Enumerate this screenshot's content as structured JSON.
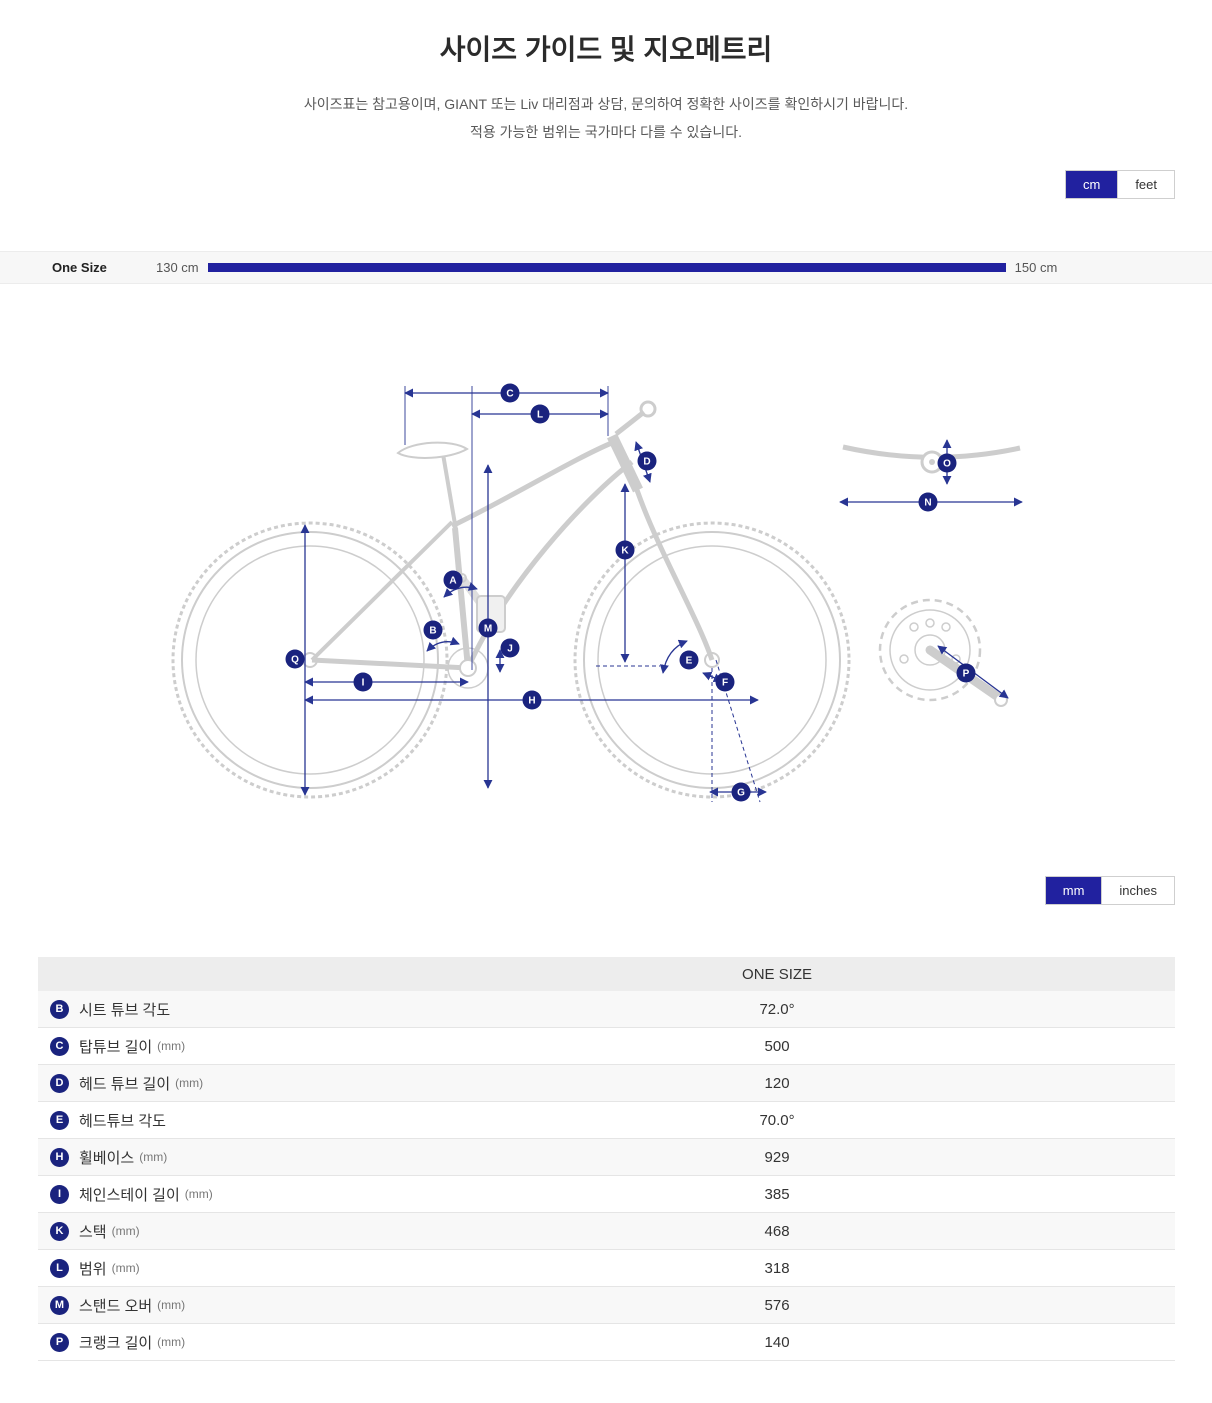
{
  "colors": {
    "accent": "#21219f",
    "marker": "#1a237e",
    "arrow": "#283593"
  },
  "header": {
    "title": "사이즈 가이드 및 지오메트리",
    "subtitle_line1": "사이즈표는 참고용이며, GIANT 또는 Liv 대리점과 상담, 문의하여 정확한 사이즈를 확인하시기 바랍니다.",
    "subtitle_line2": "적용 가능한 범위는 국가마다 다를 수 있습니다."
  },
  "length_unit_toggle": {
    "options": [
      "cm",
      "feet"
    ],
    "selected": "cm"
  },
  "size_guide": {
    "size_label": "One Size",
    "min": "130 cm",
    "max": "150 cm"
  },
  "geometry_unit_toggle": {
    "options": [
      "mm",
      "inches"
    ],
    "selected": "mm"
  },
  "diagram": {
    "markers": [
      "C",
      "L",
      "D",
      "O",
      "N",
      "K",
      "A",
      "B",
      "M",
      "J",
      "Q",
      "I",
      "E",
      "F",
      "H",
      "P",
      "G"
    ]
  },
  "table": {
    "column_header": "ONE SIZE",
    "rows": [
      {
        "letter": "B",
        "label": "시트 튜브 각도",
        "unit": "",
        "value": "72.0°"
      },
      {
        "letter": "C",
        "label": "탑튜브 길이",
        "unit": "(mm)",
        "value": "500"
      },
      {
        "letter": "D",
        "label": "헤드 튜브 길이",
        "unit": "(mm)",
        "value": "120"
      },
      {
        "letter": "E",
        "label": "헤드튜브 각도",
        "unit": "",
        "value": "70.0°"
      },
      {
        "letter": "H",
        "label": "휠베이스",
        "unit": "(mm)",
        "value": "929"
      },
      {
        "letter": "I",
        "label": "체인스테이 길이",
        "unit": "(mm)",
        "value": "385"
      },
      {
        "letter": "K",
        "label": "스택",
        "unit": "(mm)",
        "value": "468"
      },
      {
        "letter": "L",
        "label": "범위",
        "unit": "(mm)",
        "value": "318"
      },
      {
        "letter": "M",
        "label": "스탠드 오버",
        "unit": "(mm)",
        "value": "576"
      },
      {
        "letter": "P",
        "label": "크랭크 길이",
        "unit": "(mm)",
        "value": "140"
      }
    ]
  }
}
